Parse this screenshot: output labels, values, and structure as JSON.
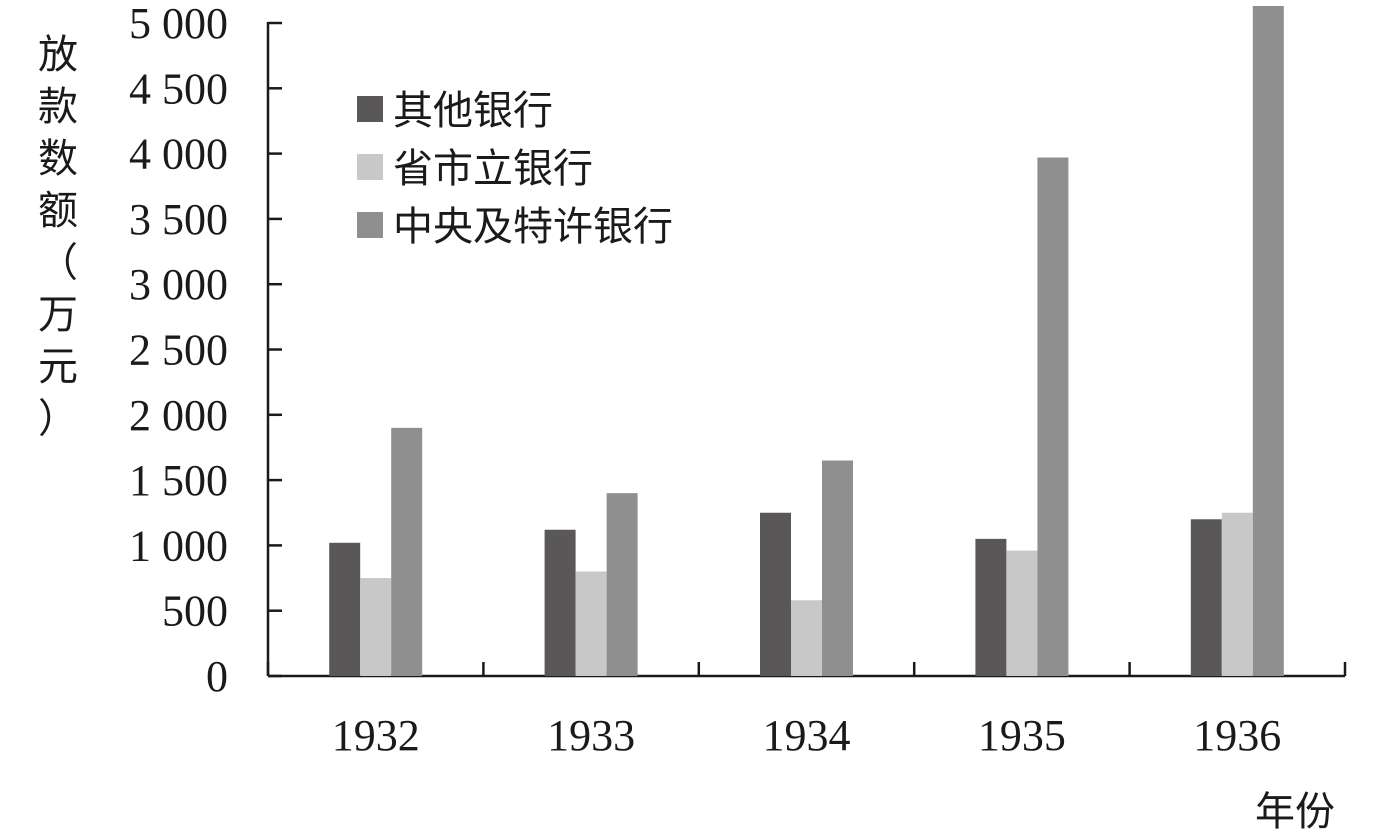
{
  "chart_data": {
    "type": "bar",
    "title": "",
    "ylabel": "放款数额（万元）",
    "xlabel": "年份",
    "categories": [
      "1932",
      "1933",
      "1934",
      "1935",
      "1936"
    ],
    "ylim": [
      0,
      5000
    ],
    "yticks": [
      0,
      500,
      1000,
      1500,
      2000,
      2500,
      3000,
      3500,
      4000,
      4500,
      5000
    ],
    "ytick_labels": [
      "0",
      "500",
      "1 000",
      "1 500",
      "2 000",
      "2 500",
      "3 000",
      "3 500",
      "4 000",
      "4 500",
      "5 000"
    ],
    "grid": false,
    "legend_position": "top-left",
    "series": [
      {
        "name": "其他银行",
        "color": "#595758",
        "values": [
          1020,
          1120,
          1250,
          1050,
          1200
        ]
      },
      {
        "name": "省市立银行",
        "color": "#c8c8c8",
        "values": [
          750,
          800,
          580,
          960,
          1250
        ]
      },
      {
        "name": "中央及特许银行",
        "color": "#8f8f8f",
        "values": [
          1900,
          1400,
          1650,
          3970,
          5150
        ]
      }
    ]
  }
}
